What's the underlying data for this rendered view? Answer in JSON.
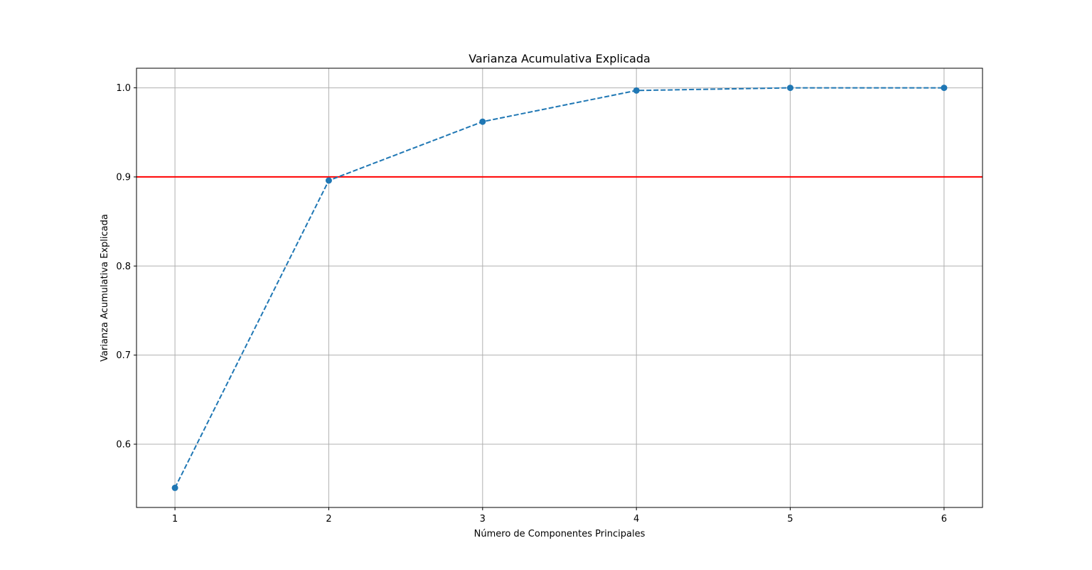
{
  "chart_data": {
    "type": "line",
    "title": "Varianza Acumulativa Explicada",
    "xlabel": "Número de Componentes Principales",
    "ylabel": "Varianza Acumulativa Explicada",
    "x": [
      1,
      2,
      3,
      4,
      5,
      6
    ],
    "series": [
      {
        "values": [
          0.551,
          0.896,
          0.962,
          0.997,
          1.0,
          1.0
        ],
        "color": "#1f77b4",
        "line_style": "dashed",
        "marker": "circle"
      }
    ],
    "threshold": {
      "value": 0.9,
      "color": "#ff0000"
    },
    "xlim": [
      0.75,
      6.25
    ],
    "ylim": [
      0.529,
      1.022
    ],
    "xticks": [
      "1",
      "2",
      "3",
      "4",
      "5",
      "6"
    ],
    "yticks": [
      "0.6",
      "0.7",
      "0.8",
      "0.9",
      "1.0"
    ],
    "grid": true
  }
}
